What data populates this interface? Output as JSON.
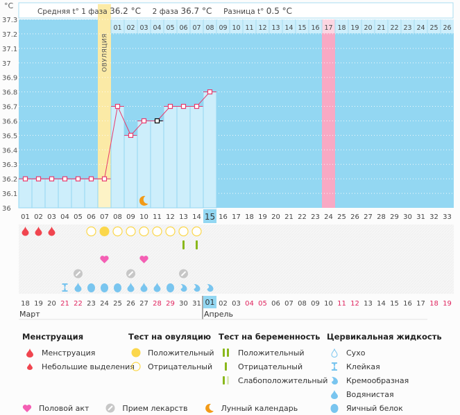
{
  "header": {
    "unit": "°C",
    "avg_phase1_label": "Средняя t° 1 фаза",
    "avg_phase1_value": "36.2 °C",
    "avg_phase2_label": "2 фаза",
    "avg_phase2_value": "36.7 °C",
    "diff_label": "Разница t°",
    "diff_value": "0.5 °C",
    "ovulation_label": "ОВУЛЯЦИЯ"
  },
  "colors": {
    "chart_bg": "#93d7f2",
    "bar_fill": "#cdeefb",
    "ovulation": "#fbeaa6",
    "ovulation_bar": "#fdf3c6",
    "expected_period": "#f8a9c4",
    "line": "#e8386b",
    "today_highlight": "#93d7f2",
    "weekend_text": "#e0245e",
    "menstruation": "#f0454f",
    "ovulation_test": "#fbd74b",
    "pregnancy_test": "#8ab81b",
    "intercourse": "#f45fb4",
    "medicine": "#c7c7c7",
    "moon": "#f29a17",
    "cervical": "#79c5ef"
  },
  "chart_data": {
    "type": "line",
    "title": "",
    "ylabel": "°C",
    "ylim": [
      36.0,
      37.3
    ],
    "yticks": [
      "36",
      "36.1",
      "36.2",
      "36.3",
      "36.4",
      "36.5",
      "36.6",
      "36.7",
      "36.8",
      "36.9",
      "37",
      "37.1",
      "37.2",
      "37.3"
    ],
    "cycle_days": [
      "01",
      "02",
      "03",
      "04",
      "05",
      "06",
      "07",
      "08",
      "09",
      "10",
      "11",
      "12",
      "13",
      "14",
      "15",
      "16",
      "17",
      "18",
      "19",
      "20",
      "21",
      "22",
      "23",
      "24",
      "25",
      "26",
      "27",
      "28",
      "29",
      "30",
      "31",
      "32",
      "33"
    ],
    "phase2_days": [
      "01",
      "02",
      "03",
      "04",
      "05",
      "06",
      "07",
      "08",
      "09",
      "10",
      "11",
      "12",
      "13",
      "14",
      "15",
      "16",
      "17",
      "18",
      "19",
      "20",
      "21",
      "22",
      "23",
      "24",
      "25",
      "26"
    ],
    "calendar_dates": [
      "18",
      "19",
      "20",
      "21",
      "22",
      "23",
      "24",
      "25",
      "26",
      "27",
      "28",
      "29",
      "30",
      "31",
      "01",
      "02",
      "03",
      "04",
      "05",
      "06",
      "07",
      "08",
      "09",
      "10",
      "11",
      "12",
      "13",
      "14",
      "15",
      "16",
      "17",
      "18",
      "19"
    ],
    "weekend_dates_index": [
      3,
      4,
      10,
      11,
      17,
      18,
      24,
      25,
      31,
      32
    ],
    "months": [
      {
        "name": "Март",
        "start_index": 0
      },
      {
        "name": "Апрель",
        "start_index": 14
      }
    ],
    "today_cycle_day_index": 14,
    "today_calendar_index": 14,
    "ovulation_day_index": 6,
    "expected_period_index": 23,
    "series": [
      {
        "name": "Базальная температура",
        "values": [
          36.2,
          36.2,
          36.2,
          36.2,
          36.2,
          36.2,
          36.2,
          36.7,
          36.5,
          36.6,
          36.6,
          36.7,
          36.7,
          36.7,
          36.8
        ]
      }
    ],
    "phase_averages": {
      "phase1": 36.2,
      "phase2": 36.7,
      "difference": 0.5
    },
    "edited_point_index": 10,
    "rows": {
      "menstruation": [
        0,
        1,
        2
      ],
      "ovulation_test": {
        "negative": [
          5,
          7,
          8,
          9,
          10,
          11,
          12,
          13
        ],
        "positive": [
          6
        ]
      },
      "pregnancy_test_negative": [
        12,
        13
      ],
      "intercourse": [
        6,
        9
      ],
      "medicine": [
        4,
        8,
        12
      ],
      "moon": [
        9
      ],
      "cervical": [
        "",
        "",
        "",
        "sticky",
        "watery",
        "egg",
        "egg",
        "egg",
        "watery",
        "watery",
        "watery",
        "egg",
        "creamy",
        "creamy",
        "creamy"
      ]
    }
  },
  "legend": {
    "menstruation": {
      "title": "Менструация",
      "items": [
        "Менструация",
        "Небольшие выделения"
      ]
    },
    "ovulation_test": {
      "title": "Тест на овуляцию",
      "items": [
        "Положительный",
        "Отрицательный"
      ]
    },
    "pregnancy_test": {
      "title": "Тест на беременность",
      "items": [
        "Положительный",
        "Отрицательный",
        "Слабоположительный"
      ]
    },
    "cervical": {
      "title": "Цервикальная жидкость",
      "items": [
        "Сухо",
        "Клейкая",
        "Кремообразная",
        "Водянистая",
        "Яичный белок"
      ]
    },
    "other": [
      "Половой акт",
      "Прием лекарств",
      "Лунный календарь"
    ]
  }
}
